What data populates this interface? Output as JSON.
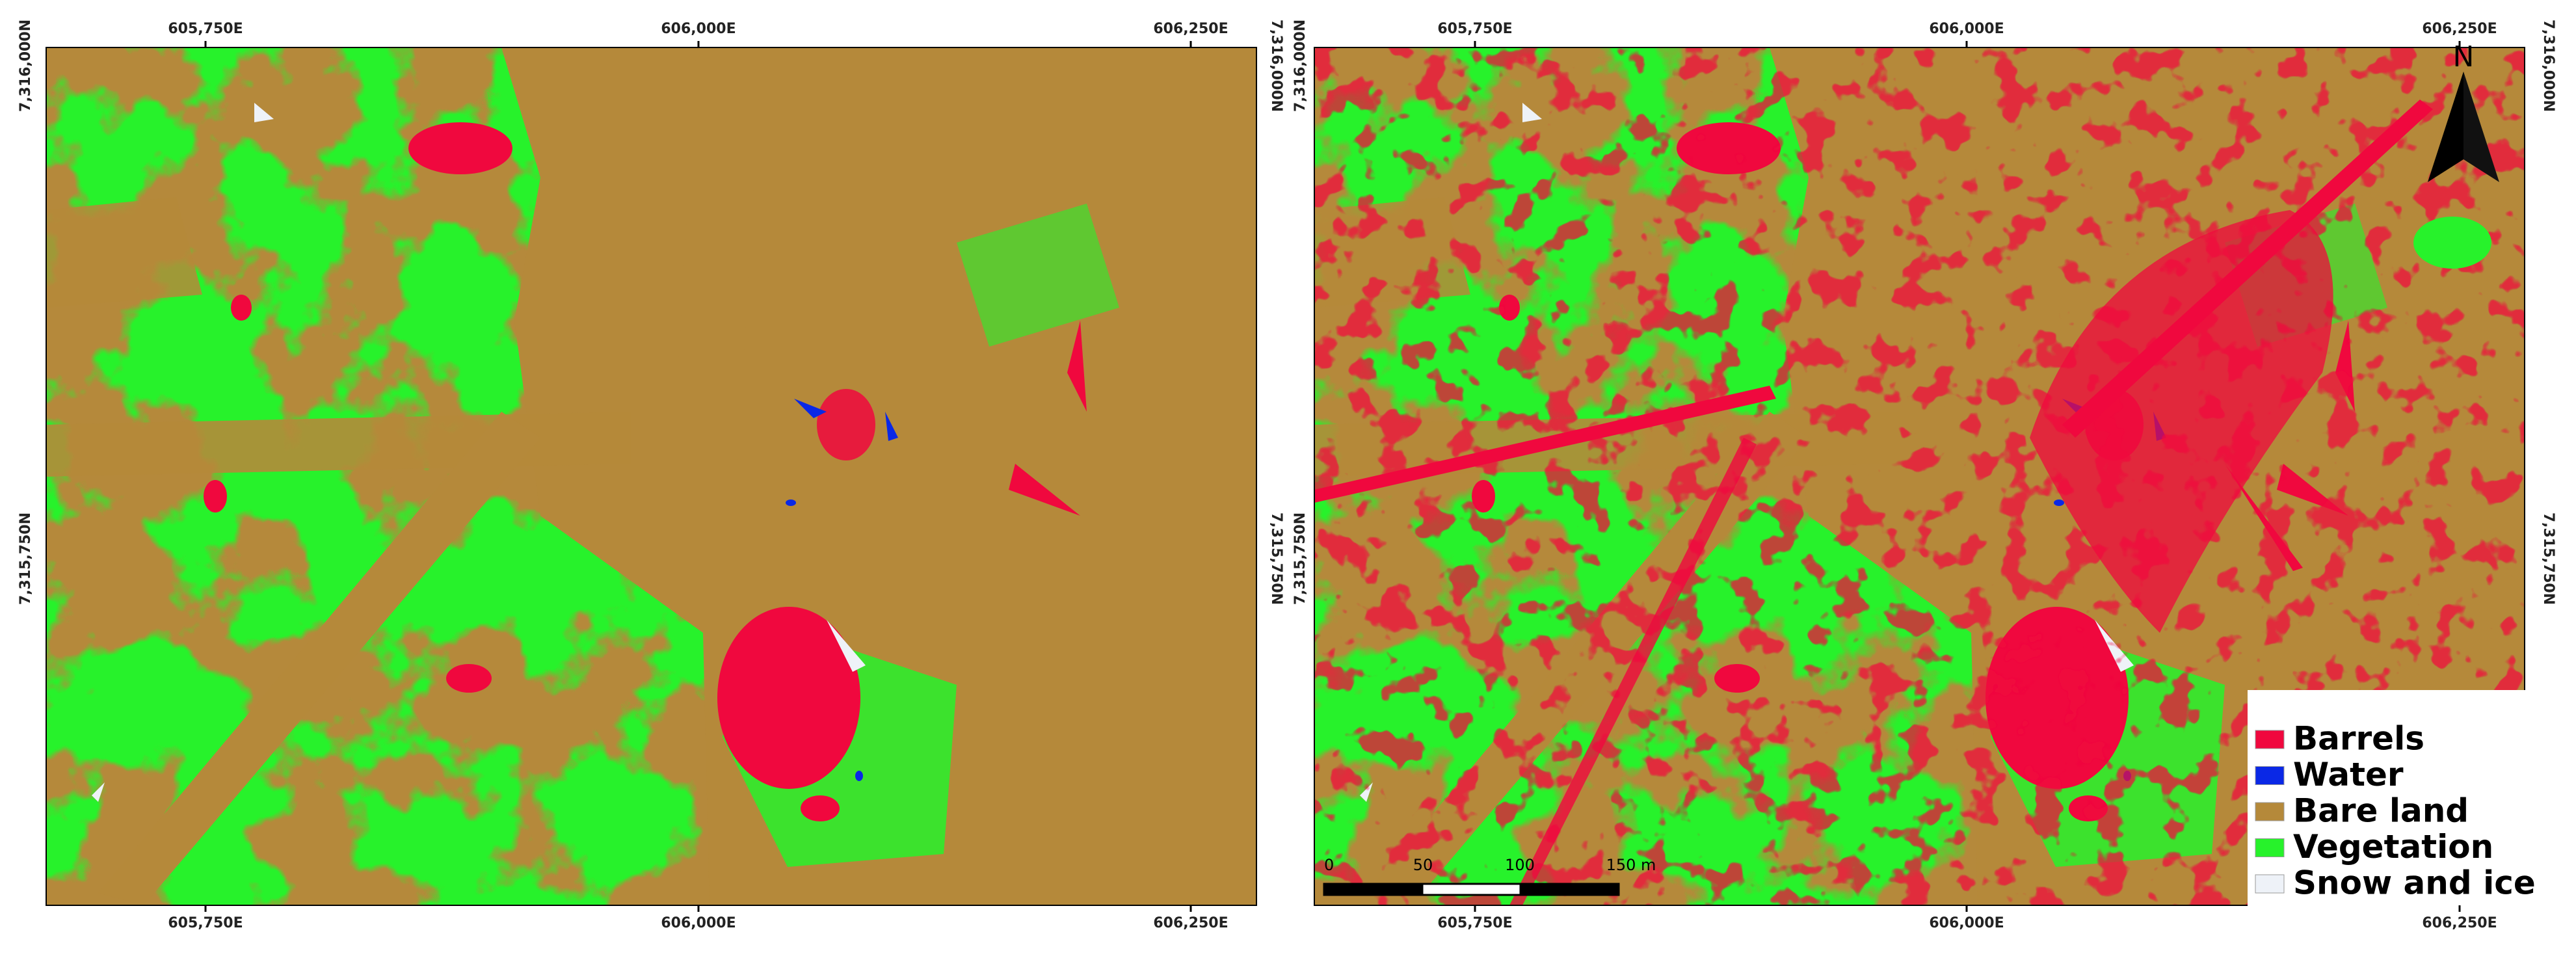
{
  "panels": [
    {
      "top_labels": [
        "605,750E",
        "606,000E",
        "606,250E"
      ],
      "bottom_labels": [
        "605,750E",
        "606,000E",
        "606,250E"
      ],
      "left_labels": [
        "7,316,000N",
        "7,315,750N"
      ],
      "right_labels": [
        "7,316,000N",
        "7,315,750N"
      ]
    },
    {
      "top_labels": [
        "605,750E",
        "606,000E",
        "606,250E"
      ],
      "bottom_labels": [
        "605,750E",
        "606,000E",
        "606,250E"
      ],
      "left_labels": [
        "7,316,000N",
        "7,315,750N"
      ],
      "right_labels": [
        "7,316,000N",
        "7,315,750N"
      ]
    }
  ],
  "legend": {
    "items": [
      {
        "label": "Barrels",
        "color": "#f0083e"
      },
      {
        "label": "Water",
        "color": "#0a28e6"
      },
      {
        "label": "Bare land",
        "color": "#b5893a"
      },
      {
        "label": "Vegetation",
        "color": "#27f22b"
      },
      {
        "label": "Snow and ice",
        "color": "#eef2f8"
      }
    ]
  },
  "scale_bar": {
    "labels": [
      "0",
      "50",
      "100",
      "150 m"
    ]
  },
  "north_arrow": {
    "label": "N"
  }
}
